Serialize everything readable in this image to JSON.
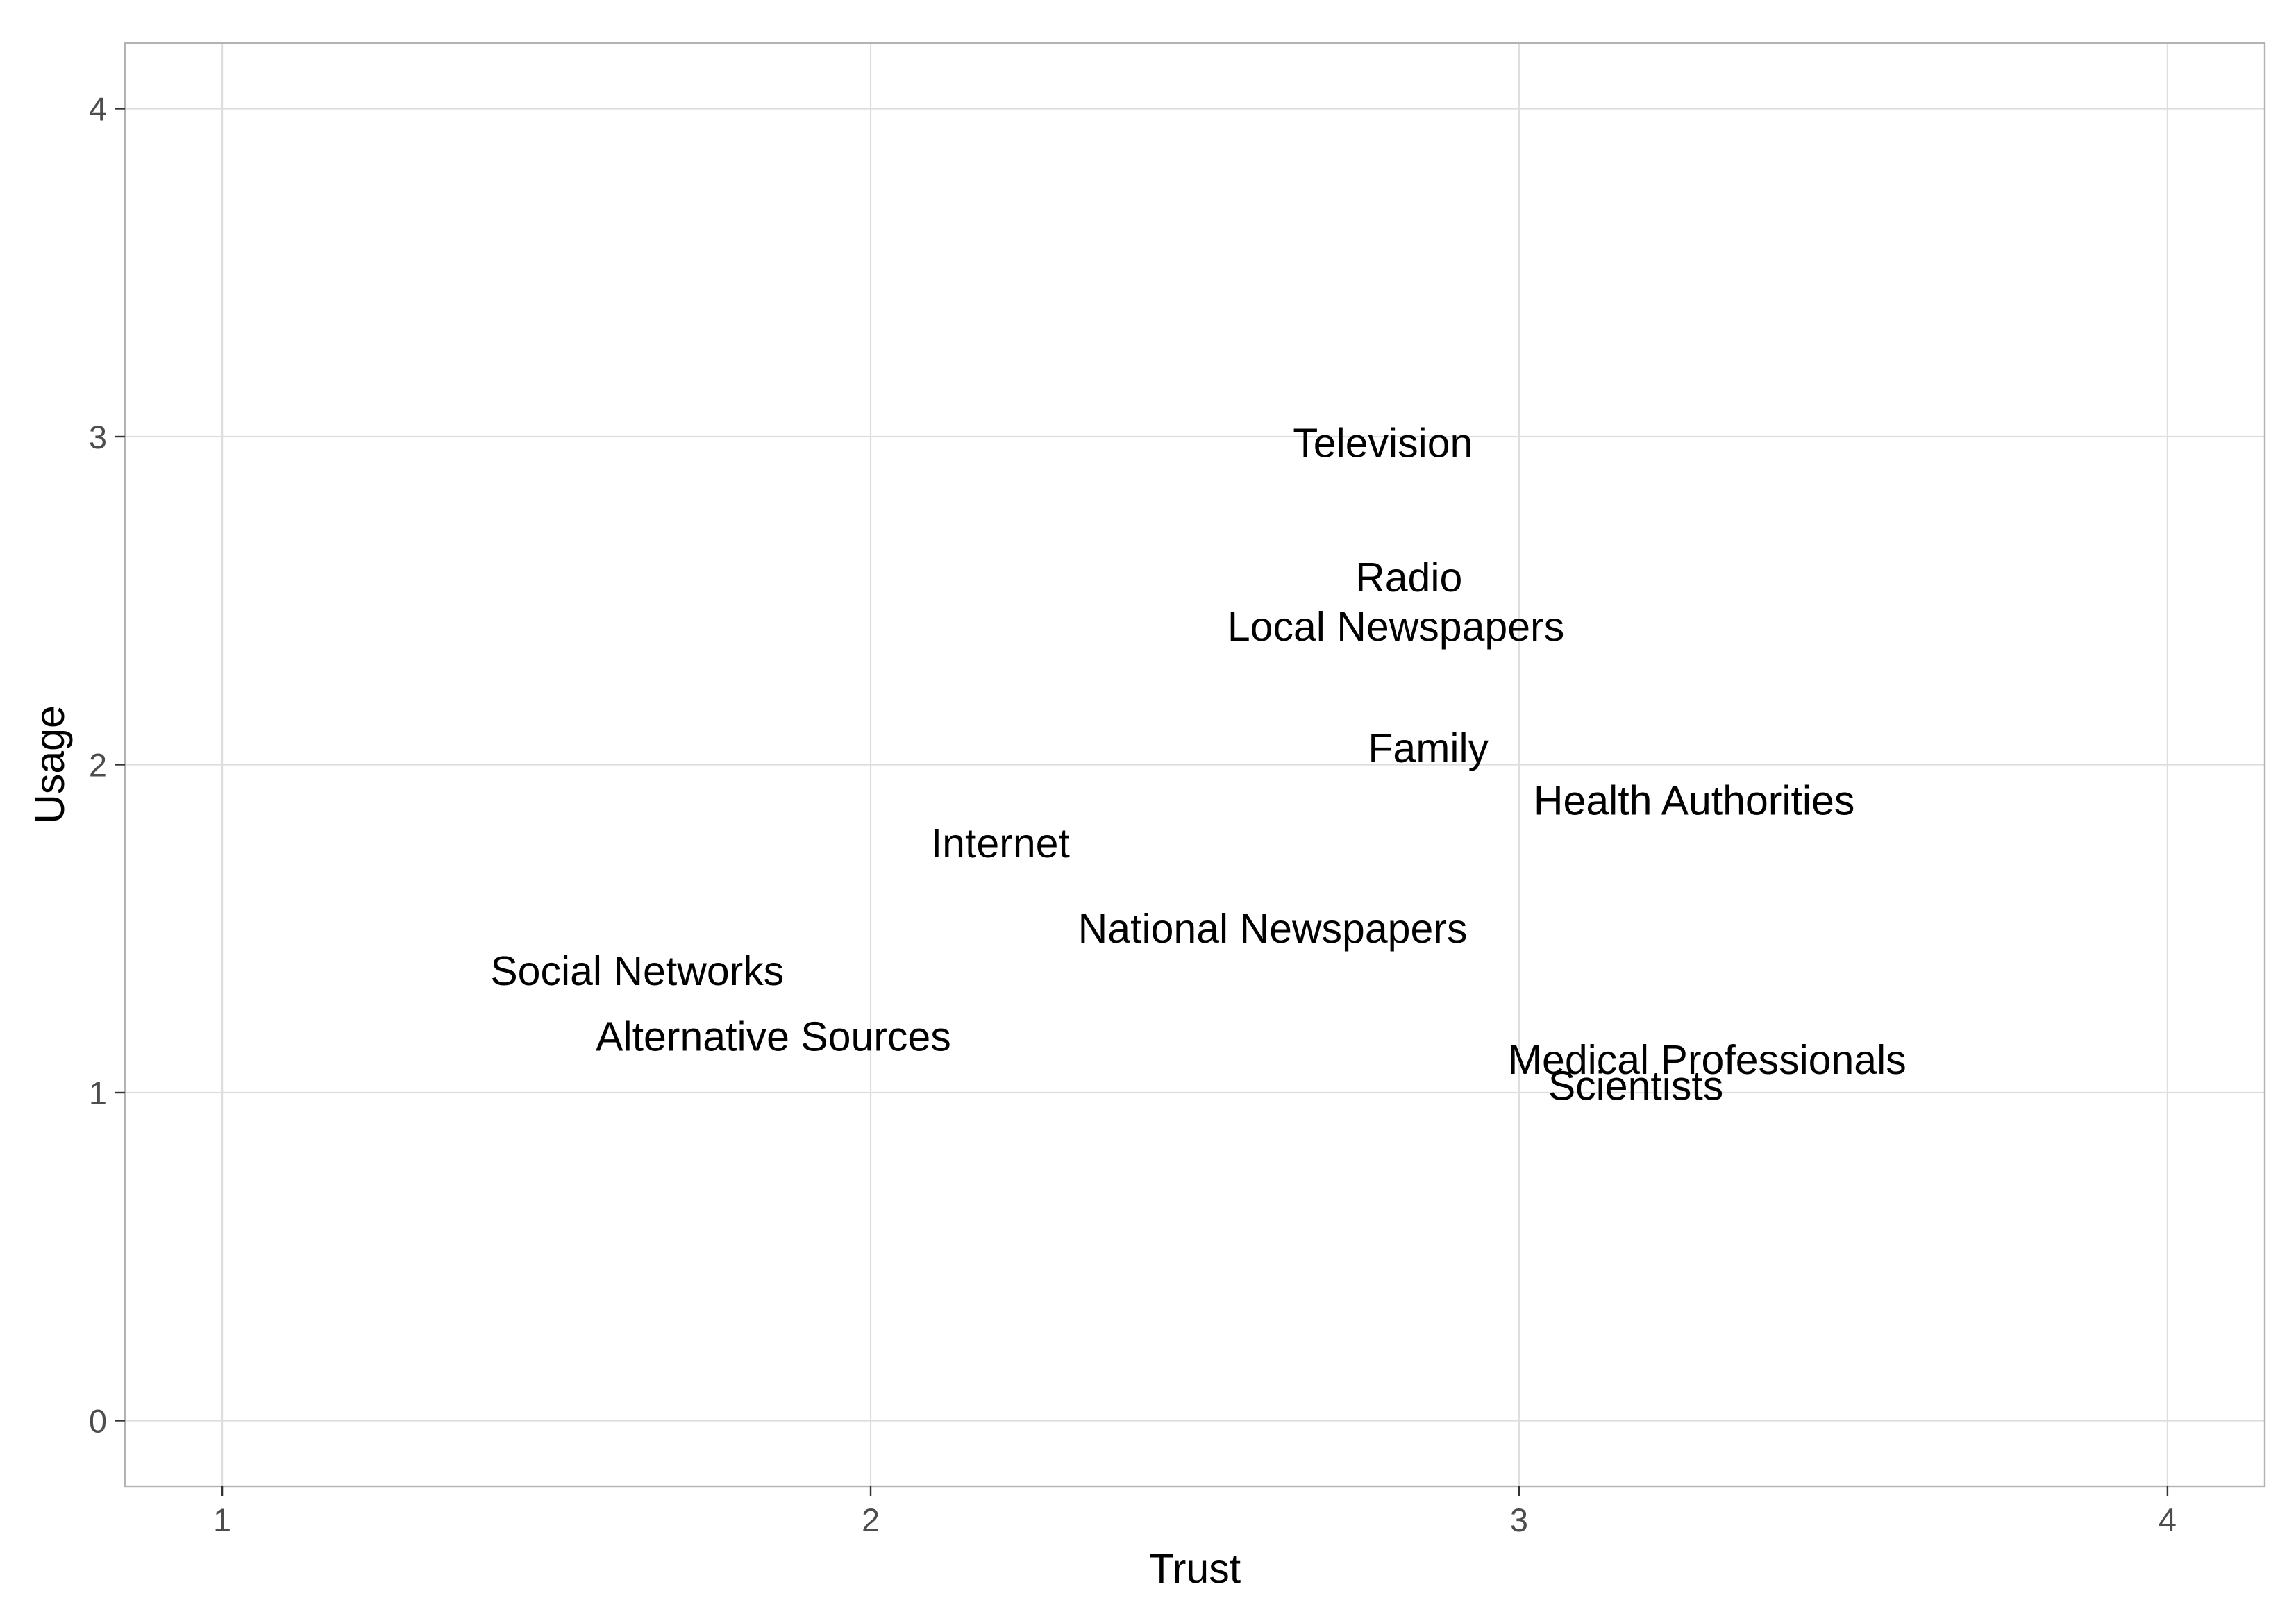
{
  "chart_data": {
    "type": "scatter",
    "xlabel": "Trust",
    "ylabel": "Usage",
    "xlim": [
      0.85,
      4.15
    ],
    "ylim": [
      -0.2,
      4.2
    ],
    "x_ticks": [
      "1",
      "2",
      "3",
      "4"
    ],
    "y_ticks": [
      "0",
      "1",
      "2",
      "3",
      "4"
    ],
    "grid": true,
    "points": [
      {
        "label": "Television",
        "x": 2.79,
        "y": 2.98
      },
      {
        "label": "Radio",
        "x": 2.83,
        "y": 2.57
      },
      {
        "label": "Local Newspapers",
        "x": 2.81,
        "y": 2.42
      },
      {
        "label": "Family",
        "x": 2.86,
        "y": 2.05
      },
      {
        "label": "Health Authorities",
        "x": 3.27,
        "y": 1.89
      },
      {
        "label": "Internet",
        "x": 2.2,
        "y": 1.76
      },
      {
        "label": "National Newspapers",
        "x": 2.62,
        "y": 1.5
      },
      {
        "label": "Social Networks",
        "x": 1.64,
        "y": 1.37
      },
      {
        "label": "Alternative Sources",
        "x": 1.85,
        "y": 1.17
      },
      {
        "label": "Medical Professionals",
        "x": 3.29,
        "y": 1.1
      },
      {
        "label": "Scientists",
        "x": 3.18,
        "y": 1.02
      }
    ]
  }
}
